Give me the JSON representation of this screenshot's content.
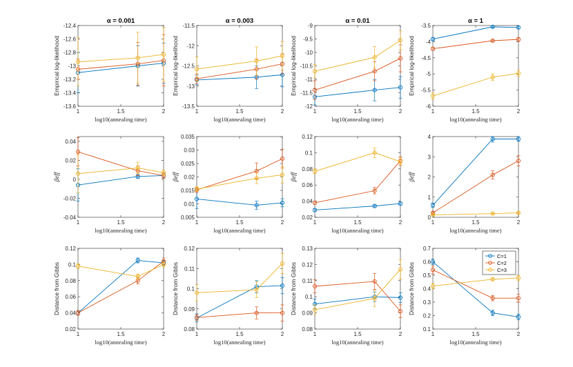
{
  "colors": {
    "C=1": "#0072BD",
    "C=2": "#D95319",
    "C=3": "#EDB120"
  },
  "legend": {
    "entries": [
      "C=1",
      "C=2",
      "C=3"
    ],
    "location": "northeast"
  },
  "chart_data": [
    {
      "type": "line",
      "row": 0,
      "col": 0,
      "title": "α = 0.001",
      "xlabel": "log10(annealing time)",
      "ylabel": "Empirical log-likelihood",
      "xlim": [
        1,
        2
      ],
      "xticks": [
        1,
        1.5,
        2
      ],
      "xticklabels": [
        "1",
        "1.5",
        "2"
      ],
      "ylim": [
        -13.6,
        -12.4
      ],
      "yticks": [
        -13.6,
        -13.4,
        -13.2,
        -13,
        -12.8,
        -12.6,
        -12.4
      ],
      "yticklabels": [
        "-13.6",
        "-13.4",
        "-13.2",
        "-13",
        "-12.8",
        "-12.6",
        "-12.4"
      ],
      "x": [
        1,
        1.699,
        2
      ],
      "series": [
        {
          "name": "C=1",
          "values": [
            -13.1,
            -13.0,
            -12.96
          ],
          "err": [
            0.3,
            0.3,
            0.3
          ]
        },
        {
          "name": "C=2",
          "values": [
            -13.05,
            -12.97,
            -12.92
          ],
          "err": [
            0.15,
            0.32,
            0.38
          ]
        },
        {
          "name": "C=3",
          "values": [
            -12.94,
            -12.88,
            -12.83
          ],
          "err": [
            0.36,
            0.38,
            0.4
          ]
        }
      ]
    },
    {
      "type": "line",
      "row": 0,
      "col": 1,
      "title": "α = 0.003",
      "xlabel": "log10(annealing time)",
      "ylabel": "Empirical log-likelihood",
      "xlim": [
        1,
        2
      ],
      "xticks": [
        1,
        1.5,
        2
      ],
      "xticklabels": [
        "1",
        "1.5",
        "2"
      ],
      "ylim": [
        -13.5,
        -11.5
      ],
      "yticks": [
        -13.5,
        -13,
        -12.5,
        -12,
        -11.5
      ],
      "yticklabels": [
        "-13.5",
        "-13",
        "-12.5",
        "-12",
        "-11.5"
      ],
      "x": [
        1,
        1.699,
        2
      ],
      "series": [
        {
          "name": "C=1",
          "values": [
            -12.85,
            -12.78,
            -12.72
          ],
          "err": [
            0.12,
            0.28,
            0.3
          ]
        },
        {
          "name": "C=2",
          "values": [
            -12.82,
            -12.58,
            -12.45
          ],
          "err": [
            0.12,
            0.25,
            0.25
          ]
        },
        {
          "name": "C=3",
          "values": [
            -12.58,
            -12.38,
            -12.25
          ],
          "err": [
            0.3,
            0.35,
            0.35
          ]
        }
      ]
    },
    {
      "type": "line",
      "row": 0,
      "col": 2,
      "title": "α = 0.01",
      "xlabel": "log10(annealing time)",
      "ylabel": "Empirical log-likelihood",
      "xlim": [
        1,
        2
      ],
      "xticks": [
        1,
        1.5,
        2
      ],
      "xticklabels": [
        "1",
        "1.5",
        "2"
      ],
      "ylim": [
        -12,
        -9
      ],
      "yticks": [
        -12,
        -11.5,
        -11,
        -10.5,
        -10,
        -9.5,
        -9
      ],
      "yticklabels": [
        "-12",
        "-11.5",
        "-11",
        "-10.5",
        "-10",
        "-9.5",
        "-9"
      ],
      "x": [
        1,
        1.699,
        2
      ],
      "series": [
        {
          "name": "C=1",
          "values": [
            -11.65,
            -11.4,
            -11.3
          ],
          "err": [
            0.3,
            0.4,
            0.4
          ]
        },
        {
          "name": "C=2",
          "values": [
            -11.4,
            -10.7,
            -10.22
          ],
          "err": [
            0.35,
            0.35,
            0.5
          ]
        },
        {
          "name": "C=3",
          "values": [
            -10.7,
            -10.18,
            -9.55
          ],
          "err": [
            0.25,
            0.4,
            0.35
          ]
        }
      ]
    },
    {
      "type": "line",
      "row": 0,
      "col": 3,
      "title": "α = 1",
      "xlabel": "log10(annealing time)",
      "ylabel": "Empirical log-likelihood",
      "xlim": [
        1,
        2
      ],
      "xticks": [
        1,
        1.5,
        2
      ],
      "xticklabels": [
        "1",
        "1.5",
        "2"
      ],
      "ylim": [
        -6,
        -3.5
      ],
      "yticks": [
        -6,
        -5.5,
        -5,
        -4.5,
        -4,
        -3.5
      ],
      "yticklabels": [
        "-6",
        "-5.5",
        "-5",
        "-4.5",
        "-4",
        "-3.5"
      ],
      "x": [
        1,
        1.699,
        2
      ],
      "series": [
        {
          "name": "C=1",
          "values": [
            -3.92,
            -3.54,
            -3.56
          ],
          "err": [
            0.05,
            0.04,
            0.04
          ]
        },
        {
          "name": "C=2",
          "values": [
            -4.22,
            -3.97,
            -3.93
          ],
          "err": [
            0.05,
            0.04,
            0.06
          ]
        },
        {
          "name": "C=3",
          "values": [
            -5.68,
            -5.1,
            -4.98
          ],
          "err": [
            0.1,
            0.1,
            0.1
          ]
        }
      ]
    },
    {
      "type": "line",
      "row": 1,
      "col": 0,
      "title": "",
      "xlabel": "log10(annealing time)",
      "ylabel": "βeff",
      "xlim": [
        1,
        2
      ],
      "xticks": [
        1,
        1.5,
        2
      ],
      "xticklabels": [
        "1",
        "1.5",
        "2"
      ],
      "ylim": [
        -0.04,
        0.045
      ],
      "yticks": [
        -0.04,
        -0.02,
        0,
        0.02,
        0.04
      ],
      "yticklabels": [
        "-0.04",
        "-0.02",
        "0",
        "0.02",
        "0.04"
      ],
      "x": [
        1,
        1.699,
        2
      ],
      "series": [
        {
          "name": "C=1",
          "values": [
            -0.006,
            0.003,
            0.004
          ],
          "err": [
            0.017,
            0.002,
            0.002
          ]
        },
        {
          "name": "C=2",
          "values": [
            0.029,
            0.009,
            0.004
          ],
          "err": [
            0.015,
            0.005,
            0.003
          ]
        },
        {
          "name": "C=3",
          "values": [
            0.006,
            0.012,
            0.007
          ],
          "err": [
            0.02,
            0.006,
            0.003
          ]
        }
      ]
    },
    {
      "type": "line",
      "row": 1,
      "col": 1,
      "title": "",
      "xlabel": "log10(annealing time)",
      "ylabel": "βeff",
      "xlim": [
        1,
        2
      ],
      "xticks": [
        1,
        1.5,
        2
      ],
      "xticklabels": [
        "1",
        "1.5",
        "2"
      ],
      "ylim": [
        0.005,
        0.035
      ],
      "yticks": [
        0.005,
        0.01,
        0.015,
        0.02,
        0.025,
        0.03,
        0.035
      ],
      "yticklabels": [
        "0.005",
        "0.01",
        "0.015",
        "0.02",
        "0.025",
        "0.03",
        "0.035"
      ],
      "x": [
        1,
        1.699,
        2
      ],
      "series": [
        {
          "name": "C=1",
          "values": [
            0.0118,
            0.0095,
            0.0104
          ],
          "err": [
            0.0035,
            0.0015,
            0.0015
          ]
        },
        {
          "name": "C=2",
          "values": [
            0.0152,
            0.0222,
            0.0268
          ],
          "err": [
            0.001,
            0.003,
            0.0035
          ]
        },
        {
          "name": "C=3",
          "values": [
            0.0155,
            0.0195,
            0.0208
          ],
          "err": [
            0.0008,
            0.002,
            0.003
          ]
        }
      ]
    },
    {
      "type": "line",
      "row": 1,
      "col": 2,
      "title": "",
      "xlabel": "log10(annealing time)",
      "ylabel": "βeff",
      "xlim": [
        1,
        2
      ],
      "xticks": [
        1,
        1.5,
        2
      ],
      "xticklabels": [
        "1",
        "1.5",
        "2"
      ],
      "ylim": [
        0.02,
        0.12
      ],
      "yticks": [
        0.02,
        0.04,
        0.06,
        0.08,
        0.1,
        0.12
      ],
      "yticklabels": [
        "0.02",
        "0.04",
        "0.06",
        "0.08",
        "0.1",
        "0.12"
      ],
      "x": [
        1,
        1.699,
        2
      ],
      "series": [
        {
          "name": "C=1",
          "values": [
            0.029,
            0.034,
            0.037
          ],
          "err": [
            0.002,
            0.002,
            0.002
          ]
        },
        {
          "name": "C=2",
          "values": [
            0.038,
            0.053,
            0.09
          ],
          "err": [
            0.002,
            0.004,
            0.005
          ]
        },
        {
          "name": "C=3",
          "values": [
            0.077,
            0.1,
            0.089
          ],
          "err": [
            0.003,
            0.006,
            0.005
          ]
        }
      ]
    },
    {
      "type": "line",
      "row": 1,
      "col": 3,
      "title": "",
      "xlabel": "log10(annealing time)",
      "ylabel": "βeff",
      "xlim": [
        1,
        2
      ],
      "xticks": [
        1,
        1.5,
        2
      ],
      "xticklabels": [
        "1",
        "1.5",
        "2"
      ],
      "ylim": [
        0,
        4
      ],
      "yticks": [
        0,
        1,
        2,
        3,
        4
      ],
      "yticklabels": [
        "0",
        "1",
        "2",
        "3",
        "4"
      ],
      "x": [
        1,
        1.699,
        2
      ],
      "series": [
        {
          "name": "C=1",
          "values": [
            0.6,
            3.88,
            3.88
          ],
          "err": [
            0.1,
            0.15,
            0.12
          ]
        },
        {
          "name": "C=2",
          "values": [
            0.22,
            2.1,
            2.8
          ],
          "err": [
            0.05,
            0.2,
            0.25
          ]
        },
        {
          "name": "C=3",
          "values": [
            0.12,
            0.18,
            0.22
          ],
          "err": [
            0.02,
            0.03,
            0.03
          ]
        }
      ]
    },
    {
      "type": "line",
      "row": 2,
      "col": 0,
      "title": "",
      "xlabel": "log10(annealing time)",
      "ylabel": "Distance from Gibbs",
      "xlim": [
        1,
        2
      ],
      "xticks": [
        1,
        1.5,
        2
      ],
      "xticklabels": [
        "1",
        "1.5",
        "2"
      ],
      "ylim": [
        0.02,
        0.12
      ],
      "yticks": [
        0.02,
        0.04,
        0.06,
        0.08,
        0.1,
        0.12
      ],
      "yticklabels": [
        "0.02",
        "0.04",
        "0.06",
        "0.08",
        "0.1",
        "0.12"
      ],
      "x": [
        1,
        1.699,
        2
      ],
      "series": [
        {
          "name": "C=1",
          "values": [
            0.04,
            0.105,
            0.102
          ],
          "err": [
            0.003,
            0.003,
            0.003
          ]
        },
        {
          "name": "C=2",
          "values": [
            0.04,
            0.08,
            0.104
          ],
          "err": [
            0.003,
            0.004,
            0.004
          ]
        },
        {
          "name": "C=3",
          "values": [
            0.098,
            0.085,
            0.1
          ],
          "err": [
            0.003,
            0.003,
            0.003
          ]
        }
      ]
    },
    {
      "type": "line",
      "row": 2,
      "col": 1,
      "title": "",
      "xlabel": "log10(annealing time)",
      "ylabel": "Distance from Gibbs",
      "xlim": [
        1,
        2
      ],
      "xticks": [
        1,
        1.5,
        2
      ],
      "xticklabels": [
        "1",
        "1.5",
        "2"
      ],
      "ylim": [
        0.08,
        0.12
      ],
      "yticks": [
        0.08,
        0.09,
        0.1,
        0.11,
        0.12
      ],
      "yticklabels": [
        "0.08",
        "0.09",
        "0.1",
        "0.11",
        "0.12"
      ],
      "x": [
        1,
        1.699,
        2
      ],
      "series": [
        {
          "name": "C=1",
          "values": [
            0.0855,
            0.101,
            0.1015
          ],
          "err": [
            0.002,
            0.003,
            0.004
          ]
        },
        {
          "name": "C=2",
          "values": [
            0.0857,
            0.088,
            0.088
          ],
          "err": [
            0.0015,
            0.003,
            0.004
          ]
        },
        {
          "name": "C=3",
          "values": [
            0.098,
            0.0995,
            0.1125
          ],
          "err": [
            0.004,
            0.004,
            0.005
          ]
        }
      ]
    },
    {
      "type": "line",
      "row": 2,
      "col": 2,
      "title": "",
      "xlabel": "log10(annealing time)",
      "ylabel": "Distance from Gibbs",
      "xlim": [
        1,
        2
      ],
      "xticks": [
        1,
        1.5,
        2
      ],
      "xticklabels": [
        "1",
        "1.5",
        "2"
      ],
      "ylim": [
        0.08,
        0.13
      ],
      "yticks": [
        0.08,
        0.09,
        0.1,
        0.11,
        0.12,
        0.13
      ],
      "yticklabels": [
        "0.08",
        "0.09",
        "0.1",
        "0.11",
        "0.12",
        "0.13"
      ],
      "x": [
        1,
        1.699,
        2
      ],
      "series": [
        {
          "name": "C=1",
          "values": [
            0.0955,
            0.1,
            0.0995
          ],
          "err": [
            0.003,
            0.003,
            0.003
          ]
        },
        {
          "name": "C=2",
          "values": [
            0.1065,
            0.1095,
            0.091
          ],
          "err": [
            0.004,
            0.005,
            0.004
          ]
        },
        {
          "name": "C=3",
          "values": [
            0.092,
            0.099,
            0.117
          ],
          "err": [
            0.003,
            0.005,
            0.006
          ]
        }
      ]
    },
    {
      "type": "line",
      "row": 2,
      "col": 3,
      "title": "",
      "xlabel": "log10(annealing time)",
      "ylabel": "Distance from Gibbs",
      "xlim": [
        1,
        2
      ],
      "xticks": [
        1,
        1.5,
        2
      ],
      "xticklabels": [
        "1",
        "1.5",
        "2"
      ],
      "ylim": [
        0.1,
        0.7
      ],
      "yticks": [
        0.1,
        0.2,
        0.3,
        0.4,
        0.5,
        0.6,
        0.7
      ],
      "yticklabels": [
        "0.1",
        "0.2",
        "0.3",
        "0.4",
        "0.5",
        "0.6",
        "0.7"
      ],
      "x": [
        1,
        1.699,
        2
      ],
      "series": [
        {
          "name": "C=1",
          "values": [
            0.6,
            0.22,
            0.19
          ],
          "err": [
            0.02,
            0.02,
            0.02
          ]
        },
        {
          "name": "C=2",
          "values": [
            0.54,
            0.33,
            0.33
          ],
          "err": [
            0.03,
            0.02,
            0.03
          ]
        },
        {
          "name": "C=3",
          "values": [
            0.42,
            0.47,
            0.48
          ],
          "err": [
            0.02,
            0.01,
            0.02
          ]
        }
      ]
    }
  ]
}
